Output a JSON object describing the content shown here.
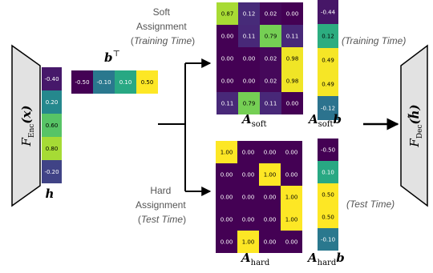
{
  "soft_label": {
    "line1": "Soft",
    "line2": "Assignment",
    "paren_open": "(",
    "time_label": "Training Time",
    "paren_close": ")"
  },
  "hard_label": {
    "line1": "Hard",
    "line2": "Assignment",
    "paren_open": "(",
    "time_label": "Test Time",
    "paren_close": ")"
  },
  "right_labels": {
    "training": "(Training Time)",
    "test": "(Test Time)"
  },
  "encoder": {
    "script": "F",
    "sub": "Enc",
    "arg": "(x)"
  },
  "decoder": {
    "script": "F",
    "sub": "Dec",
    "arg": "(h̃)"
  },
  "symbols": {
    "h": "h",
    "b_base": "b",
    "b_sup": "⊤",
    "A_soft_base": "A",
    "A_soft_sub": "soft",
    "A_soft_b_base": "A",
    "A_soft_b_sub": "soft",
    "A_soft_b_tail": "b",
    "A_hard_base": "A",
    "A_hard_sub": "hard",
    "A_hard_b_base": "A",
    "A_hard_b_sub": "hard",
    "A_hard_b_tail": "b"
  },
  "h_vector": [
    "-0.40",
    "0.20",
    "0.60",
    "0.80",
    "-0.20"
  ],
  "b_vector": [
    "-0.50",
    "-0.10",
    "0.10",
    "0.50"
  ],
  "A_soft": [
    [
      "0.87",
      "0.12",
      "0.02",
      "0.00"
    ],
    [
      "0.00",
      "0.11",
      "0.79",
      "0.11"
    ],
    [
      "0.00",
      "0.00",
      "0.02",
      "0.98"
    ],
    [
      "0.00",
      "0.00",
      "0.02",
      "0.98"
    ],
    [
      "0.11",
      "0.79",
      "0.11",
      "0.00"
    ]
  ],
  "A_soft_b": [
    "-0.44",
    "0.12",
    "0.49",
    "0.49",
    "-0.12"
  ],
  "A_hard": [
    [
      "1.00",
      "0.00",
      "0.00",
      "0.00"
    ],
    [
      "0.00",
      "0.00",
      "1.00",
      "0.00"
    ],
    [
      "0.00",
      "0.00",
      "0.00",
      "1.00"
    ],
    [
      "0.00",
      "0.00",
      "0.00",
      "1.00"
    ],
    [
      "0.00",
      "1.00",
      "0.00",
      "0.00"
    ]
  ],
  "A_hard_b": [
    "-0.50",
    "0.10",
    "0.50",
    "0.50",
    "-0.10"
  ],
  "colormap": {
    "low": "#440154",
    "mid": "#21918c",
    "high": "#fde725"
  }
}
